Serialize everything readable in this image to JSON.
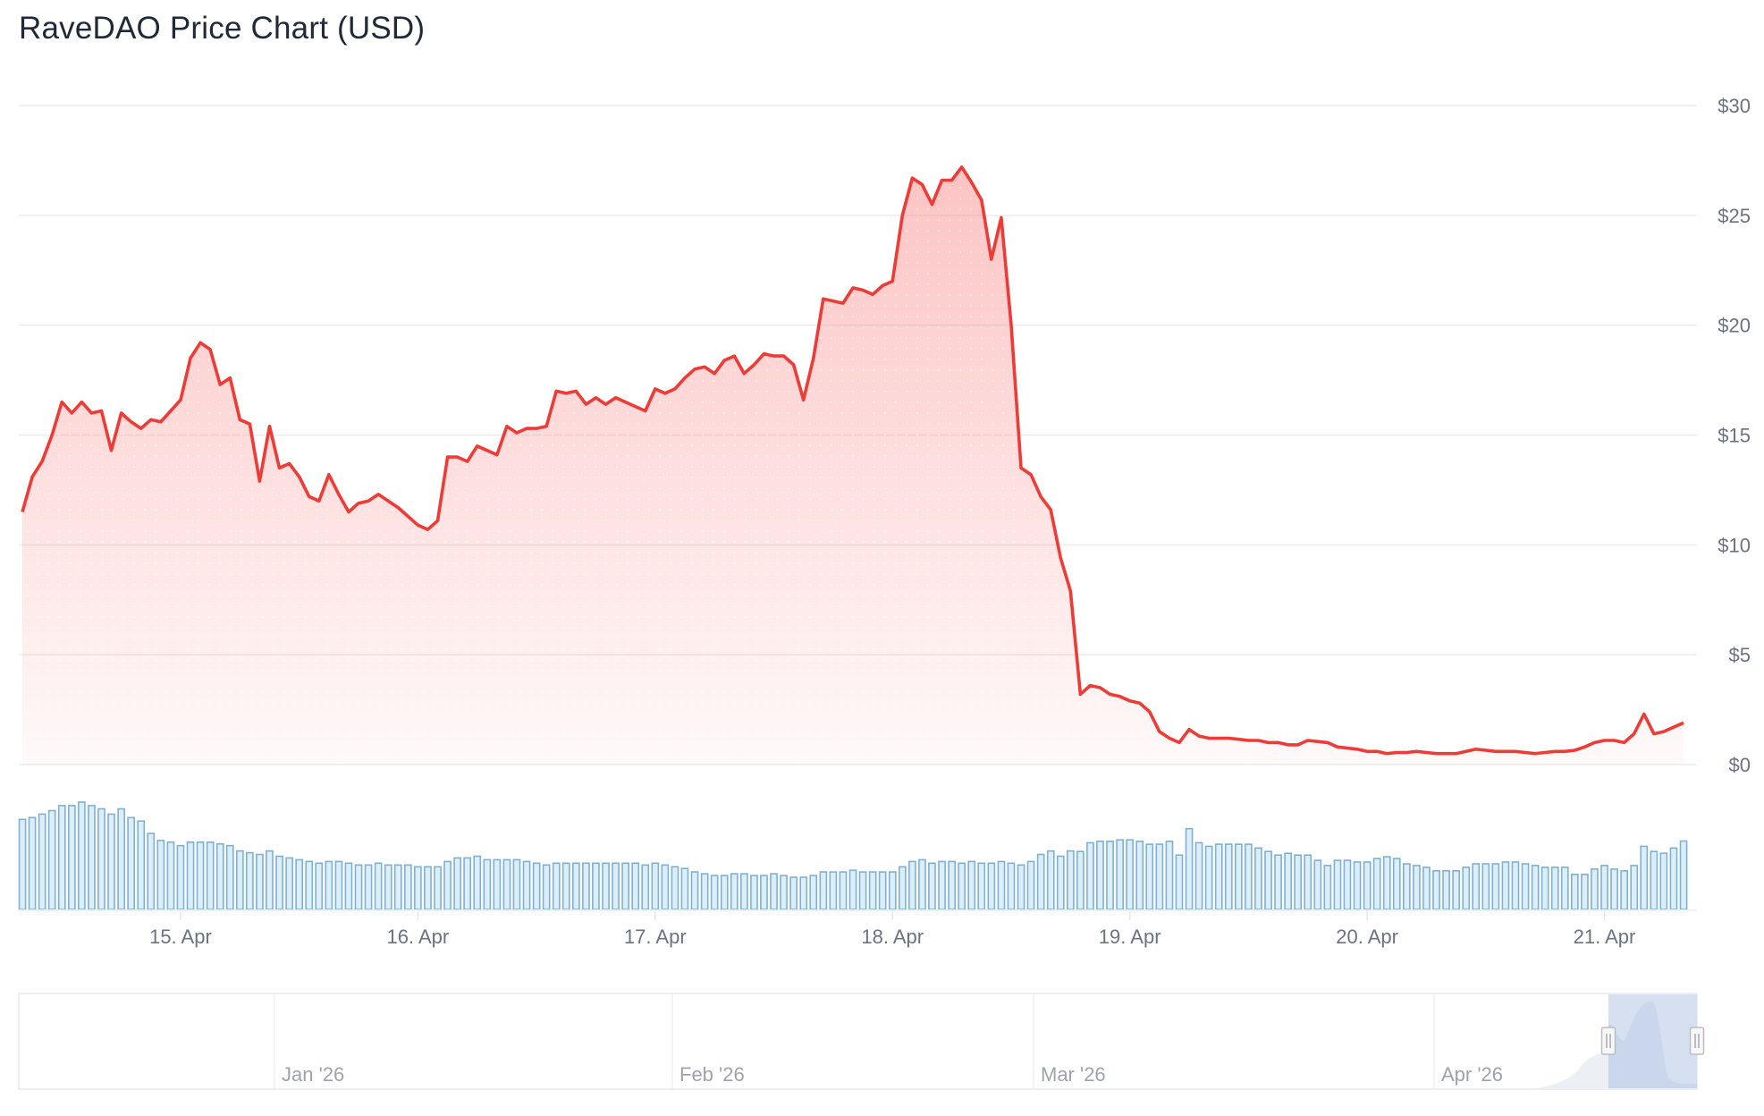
{
  "title": "RaveDAO Price Chart (USD)",
  "colors": {
    "price_line": "#ef3b36",
    "price_fill": "#f87171",
    "volume_fill": "#dbeefa",
    "volume_stroke": "#7fb1d3",
    "grid": "#ececec",
    "navigator_selection": "#cfdaee"
  },
  "chart_data": [
    {
      "type": "area",
      "title": "RaveDAO Price Chart (USD)",
      "ylabel": "",
      "xlabel": "",
      "ylim": [
        0,
        30
      ],
      "y_ticks": [
        "$0",
        "$5",
        "$10",
        "$15",
        "$20",
        "$25",
        "$30"
      ],
      "y_tick_values": [
        0,
        5,
        10,
        15,
        20,
        25,
        30
      ],
      "x_ticks": [
        "15. Apr",
        "16. Apr",
        "17. Apr",
        "18. Apr",
        "19. Apr",
        "20. Apr",
        "21. Apr"
      ],
      "grid": true,
      "interval": "hourly",
      "points_by_day": [
        {
          "date": "2026-04-14",
          "from_hour": 8,
          "price": [
            11.5,
            13.1,
            13.8,
            15.0,
            16.5,
            16.0,
            16.5,
            16.0,
            16.1,
            14.3,
            16.0,
            15.6,
            15.3,
            15.7,
            15.6,
            16.1
          ]
        },
        {
          "date": "2026-04-15",
          "from_hour": 0,
          "price": [
            16.6,
            18.5,
            19.2,
            18.9,
            17.3,
            17.6,
            15.7,
            15.5,
            12.9,
            15.4,
            13.5,
            13.7,
            13.1,
            12.2,
            12.0,
            13.2,
            12.3,
            11.5,
            11.9,
            12.0,
            12.3,
            12.0,
            11.7,
            11.3
          ]
        },
        {
          "date": "2026-04-16",
          "from_hour": 0,
          "price": [
            10.9,
            10.7,
            11.1,
            14.0,
            14.0,
            13.8,
            14.5,
            14.3,
            14.1,
            15.4,
            15.1,
            15.3,
            15.3,
            15.4,
            17.0,
            16.9,
            17.0,
            16.4,
            16.7,
            16.4,
            16.7,
            16.5,
            16.3,
            16.1
          ]
        },
        {
          "date": "2026-04-17",
          "from_hour": 0,
          "price": [
            17.1,
            16.9,
            17.1,
            17.6,
            18.0,
            18.1,
            17.8,
            18.4,
            18.6,
            17.8,
            18.2,
            18.7,
            18.6,
            18.6,
            18.2,
            16.6,
            18.5,
            21.2,
            21.1,
            21.0,
            21.7,
            21.6,
            21.4,
            21.8
          ]
        },
        {
          "date": "2026-04-18",
          "from_hour": 0,
          "price": [
            22.0,
            25.0,
            26.7,
            26.4,
            25.5,
            26.6,
            26.6,
            27.2,
            26.5,
            25.7,
            23.0,
            24.9,
            20.0,
            13.5,
            13.2,
            12.2,
            11.6,
            9.4,
            7.9,
            3.2,
            3.6,
            3.5,
            3.2,
            3.1
          ]
        },
        {
          "date": "2026-04-19",
          "from_hour": 0,
          "price": [
            2.9,
            2.8,
            2.4,
            1.5,
            1.2,
            1.0,
            1.6,
            1.3,
            1.2,
            1.2,
            1.2,
            1.15,
            1.1,
            1.1,
            1.0,
            1.0,
            0.9,
            0.9,
            1.1,
            1.05,
            1.0,
            0.8,
            0.75,
            0.7
          ]
        },
        {
          "date": "2026-04-20",
          "from_hour": 0,
          "price": [
            0.6,
            0.6,
            0.5,
            0.55,
            0.55,
            0.6,
            0.55,
            0.5,
            0.5,
            0.5,
            0.6,
            0.7,
            0.65,
            0.6,
            0.6,
            0.6,
            0.55,
            0.5,
            0.55,
            0.6,
            0.6,
            0.65,
            0.8,
            1.0
          ]
        },
        {
          "date": "2026-04-21",
          "from_hour": 0,
          "price": [
            1.1,
            1.1,
            1.0,
            1.4,
            2.3,
            1.4,
            1.5,
            1.7,
            1.9
          ]
        }
      ]
    },
    {
      "type": "bar",
      "ylabel": "",
      "note_units": "relative (no axis shown)",
      "ylim": [
        0,
        370
      ],
      "grid": false,
      "interval": "hourly",
      "points_by_day": [
        {
          "date": "2026-04-14",
          "from_hour": 8,
          "volume": [
            308,
            314,
            326,
            338,
            355,
            355,
            367,
            355,
            344,
            326,
            344,
            314,
            302,
            260,
            236,
            230
          ]
        },
        {
          "date": "2026-04-15",
          "from_hour": 0,
          "volume": [
            218,
            230,
            230,
            230,
            224,
            218,
            200,
            194,
            188,
            200,
            182,
            176,
            170,
            164,
            158,
            164,
            164,
            158,
            152,
            152,
            158,
            152,
            152,
            152
          ]
        },
        {
          "date": "2026-04-16",
          "from_hour": 0,
          "volume": [
            146,
            146,
            146,
            164,
            176,
            176,
            182,
            170,
            170,
            170,
            170,
            164,
            158,
            152,
            158,
            158,
            158,
            158,
            158,
            158,
            158,
            158,
            158,
            152
          ]
        },
        {
          "date": "2026-04-17",
          "from_hour": 0,
          "volume": [
            158,
            152,
            146,
            140,
            128,
            122,
            116,
            116,
            122,
            122,
            116,
            116,
            122,
            116,
            110,
            110,
            116,
            128,
            128,
            128,
            134,
            128,
            128,
            128
          ]
        },
        {
          "date": "2026-04-18",
          "from_hour": 0,
          "volume": [
            128,
            146,
            164,
            170,
            158,
            164,
            164,
            158,
            164,
            158,
            158,
            164,
            158,
            152,
            164,
            188,
            200,
            182,
            200,
            198,
            228,
            233,
            233,
            238
          ]
        },
        {
          "date": "2026-04-19",
          "from_hour": 0,
          "volume": [
            238,
            233,
            223,
            223,
            233,
            186,
            276,
            228,
            216,
            223,
            223,
            223,
            223,
            210,
            198,
            186,
            192,
            186,
            186,
            168,
            150,
            168,
            168,
            162
          ]
        },
        {
          "date": "2026-04-20",
          "from_hour": 0,
          "volume": [
            162,
            174,
            180,
            174,
            156,
            150,
            144,
            132,
            132,
            132,
            144,
            156,
            156,
            156,
            162,
            162,
            156,
            150,
            144,
            144,
            144,
            120,
            120,
            138
          ]
        },
        {
          "date": "2026-04-21",
          "from_hour": 0,
          "volume": [
            150,
            138,
            132,
            150,
            216,
            198,
            192,
            210,
            234
          ]
        }
      ]
    }
  ],
  "navigator": {
    "labels": [
      "Jan '26",
      "Feb '26",
      "Mar '26",
      "Apr '26"
    ],
    "handle_icon": "grip-lines-icon"
  }
}
